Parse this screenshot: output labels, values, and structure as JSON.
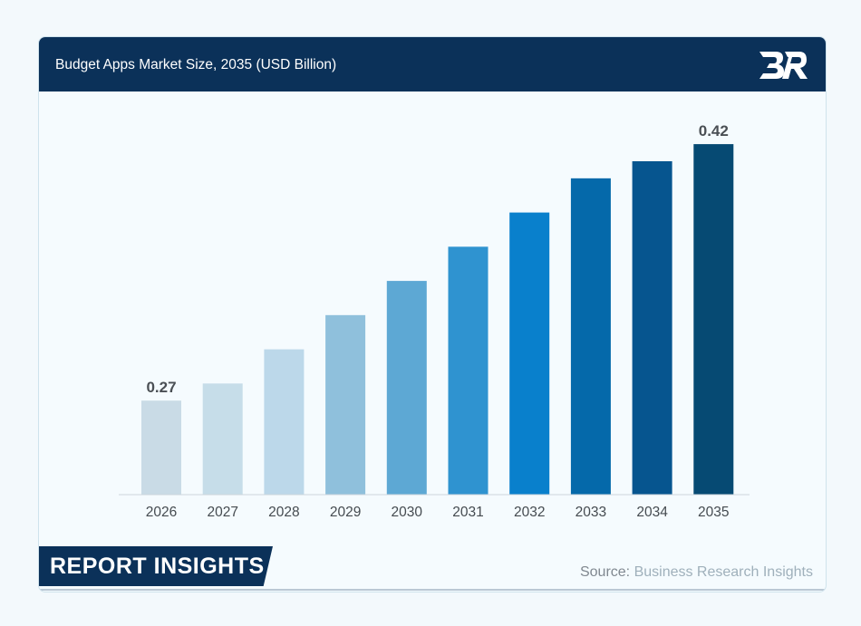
{
  "header": {
    "title": "Budget Apps Market Size, 2035 (USD Billion)",
    "logo_icon": "brand-logo-icon"
  },
  "footer": {
    "badge_label": "REPORT INSIGHTS",
    "source_label": "Source:",
    "source_value": "Business Research Insights"
  },
  "colors": {
    "header_bg": "#0b3159",
    "bars": [
      "#c9dbe6",
      "#c6dde9",
      "#bcd8ea",
      "#8fc0dc",
      "#5da8d4",
      "#2f93d0",
      "#0980cc",
      "#0569aa",
      "#06558f",
      "#064a73"
    ]
  },
  "chart_data": {
    "type": "bar",
    "title": "Budget Apps Market Size, 2035 (USD Billion)",
    "xlabel": "",
    "ylabel": "",
    "categories": [
      "2026",
      "2027",
      "2028",
      "2029",
      "2030",
      "2031",
      "2032",
      "2033",
      "2034",
      "2035"
    ],
    "values": [
      0.27,
      0.28,
      0.3,
      0.32,
      0.34,
      0.36,
      0.38,
      0.4,
      0.41,
      0.42
    ],
    "data_labels": [
      {
        "category": "2026",
        "text": "0.27"
      },
      {
        "category": "2035",
        "text": "0.42"
      }
    ],
    "ylim": [
      0.215,
      0.428
    ],
    "grid": false,
    "legend": "none"
  }
}
